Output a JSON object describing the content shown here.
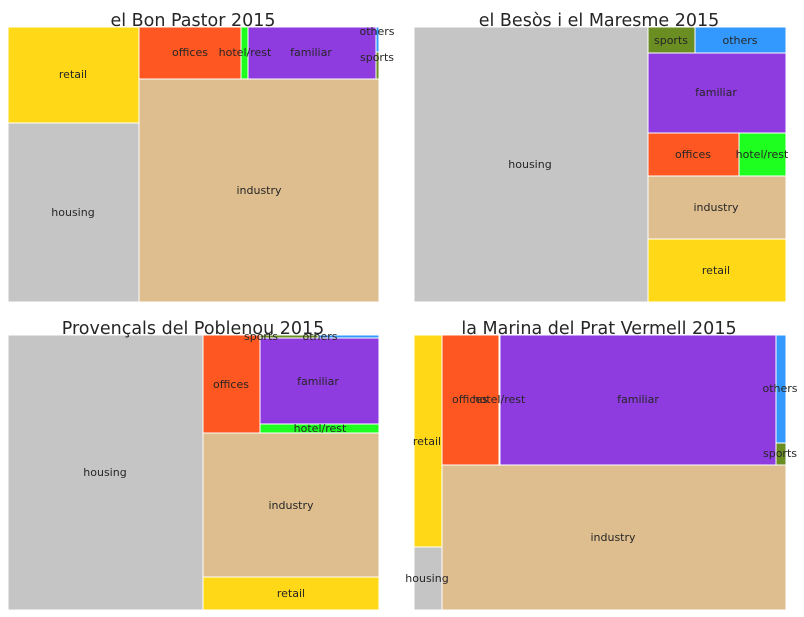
{
  "chart_data": [
    {
      "type": "treemap",
      "title": "el Bon Pastor 2015",
      "cells": [
        {
          "label": "retail",
          "color": "#FFD817"
        },
        {
          "label": "housing",
          "color": "#C5C5C5"
        },
        {
          "label": "offices",
          "color": "#FF5721"
        },
        {
          "label": "hotel/rest",
          "color": "#1FFF1F"
        },
        {
          "label": "familiar",
          "color": "#8E3BE0"
        },
        {
          "label": "others",
          "color": "#3399FF"
        },
        {
          "label": "sports",
          "color": "#6B8E23"
        },
        {
          "label": "industry",
          "color": "#DEBE8F"
        }
      ]
    },
    {
      "type": "treemap",
      "title": "el Besòs i el Maresme 2015",
      "cells": [
        {
          "label": "housing",
          "color": "#C5C5C5"
        },
        {
          "label": "sports",
          "color": "#6B8E23"
        },
        {
          "label": "others",
          "color": "#3399FF"
        },
        {
          "label": "familiar",
          "color": "#8E3BE0"
        },
        {
          "label": "offices",
          "color": "#FF5721"
        },
        {
          "label": "hotel/rest",
          "color": "#1FFF1F"
        },
        {
          "label": "industry",
          "color": "#DEBE8F"
        },
        {
          "label": "retail",
          "color": "#FFD817"
        }
      ]
    },
    {
      "type": "treemap",
      "title": "Provençals del Poblenou 2015",
      "cells": [
        {
          "label": "housing",
          "color": "#C5C5C5"
        },
        {
          "label": "offices",
          "color": "#FF5721"
        },
        {
          "label": "sports",
          "color": "#6B8E23"
        },
        {
          "label": "others",
          "color": "#3399FF"
        },
        {
          "label": "familiar",
          "color": "#8E3BE0"
        },
        {
          "label": "hotel/rest",
          "color": "#1FFF1F"
        },
        {
          "label": "industry",
          "color": "#DEBE8F"
        },
        {
          "label": "retail",
          "color": "#FFD817"
        }
      ]
    },
    {
      "type": "treemap",
      "title": "la Marina del Prat Vermell 2015",
      "cells": [
        {
          "label": "retail",
          "color": "#FFD817"
        },
        {
          "label": "housing",
          "color": "#C5C5C5"
        },
        {
          "label": "offices",
          "color": "#FF5721"
        },
        {
          "label": "hotel/rest",
          "color": "#1FFF1F"
        },
        {
          "label": "familiar",
          "color": "#8E3BE0"
        },
        {
          "label": "others",
          "color": "#3399FF"
        },
        {
          "label": "sports",
          "color": "#6B8E23"
        },
        {
          "label": "industry",
          "color": "#DEBE8F"
        }
      ]
    }
  ]
}
